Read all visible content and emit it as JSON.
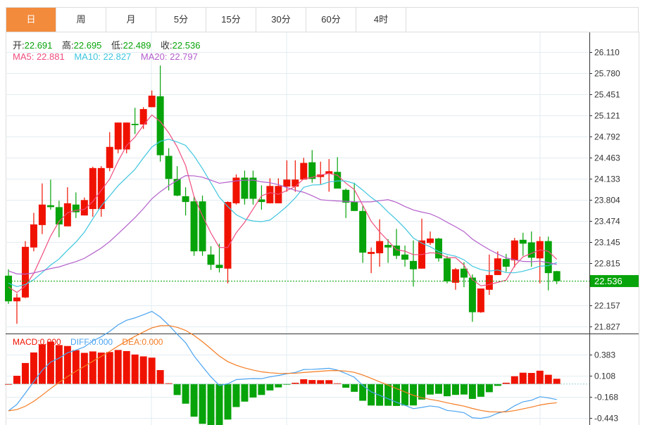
{
  "tabs": [
    "日",
    "周",
    "月",
    "5分",
    "15分",
    "30分",
    "60分",
    "4时"
  ],
  "active_tab": 0,
  "ohlc_info": {
    "open_label": "开:",
    "open": "22.691",
    "high_label": "高:",
    "high": "22.695",
    "low_label": "低:",
    "low": "22.489",
    "close_label": "收:",
    "close": "22.536"
  },
  "ma_info": {
    "ma5": "MA5: 22.881",
    "ma10": "MA10: 22.827",
    "ma20": "MA20: 22.797"
  },
  "macd_info": {
    "macd": "MACD:0.000",
    "diff": "DIFF:0.000",
    "dea": "DEA:0.000"
  },
  "colors": {
    "up": "#f01200",
    "down": "#07a30a",
    "ma5": "#ef4d7e",
    "ma10": "#3ec6df",
    "ma20": "#b45fcb",
    "diff": "#4aa3f0",
    "dea": "#f57c23",
    "accent": "#f38b3c"
  },
  "chart_data": {
    "type": "candlestick",
    "price_axis_ticks": [
      "26.110",
      "25.780",
      "25.451",
      "25.121",
      "24.792",
      "24.463",
      "24.133",
      "23.804",
      "23.474",
      "23.145",
      "22.815",
      "22.157",
      "21.827"
    ],
    "price_range": [
      21.827,
      26.11
    ],
    "last_price_label": "22.536",
    "macd_axis_ticks": [
      "0.383",
      "0.108",
      "-0.168",
      "-0.443"
    ],
    "macd_range": [
      -0.443,
      0.383
    ],
    "candles": [
      [
        22.62,
        22.72,
        22.18,
        22.22
      ],
      [
        22.22,
        22.34,
        21.87,
        22.28
      ],
      [
        22.28,
        23.16,
        22.27,
        23.07
      ],
      [
        23.06,
        23.6,
        23.0,
        23.42
      ],
      [
        23.41,
        24.06,
        23.27,
        23.73
      ],
      [
        23.72,
        24.12,
        23.65,
        23.69
      ],
      [
        23.69,
        23.79,
        23.22,
        23.42
      ],
      [
        23.39,
        24.0,
        23.39,
        23.75
      ],
      [
        23.73,
        23.92,
        23.52,
        23.61
      ],
      [
        23.56,
        23.84,
        23.56,
        23.8
      ],
      [
        23.66,
        24.32,
        23.54,
        24.3
      ],
      [
        23.66,
        24.33,
        23.54,
        24.3
      ],
      [
        24.3,
        24.86,
        24.25,
        24.63
      ],
      [
        24.59,
        25.01,
        24.53,
        25.01
      ],
      [
        24.59,
        25.01,
        24.53,
        25.01
      ],
      [
        24.99,
        25.24,
        24.83,
        24.97
      ],
      [
        24.98,
        25.25,
        24.91,
        25.22
      ],
      [
        25.25,
        25.51,
        25.25,
        25.43
      ],
      [
        25.42,
        25.9,
        24.4,
        24.5
      ],
      [
        24.49,
        24.61,
        23.95,
        24.13
      ],
      [
        24.13,
        24.33,
        23.86,
        23.87
      ],
      [
        23.86,
        24.0,
        23.56,
        23.77
      ],
      [
        23.78,
        23.86,
        22.93,
        23.0
      ],
      [
        23.78,
        23.87,
        22.93,
        23.0
      ],
      [
        22.95,
        23.08,
        22.71,
        22.79
      ],
      [
        22.79,
        23.12,
        22.67,
        22.74
      ],
      [
        22.73,
        23.78,
        22.5,
        23.77
      ],
      [
        23.75,
        24.2,
        23.73,
        24.15
      ],
      [
        24.15,
        24.26,
        23.73,
        23.82
      ],
      [
        24.15,
        24.26,
        23.73,
        23.82
      ],
      [
        23.81,
        24.03,
        23.65,
        23.77
      ],
      [
        23.75,
        24.14,
        23.75,
        24.02
      ],
      [
        23.75,
        24.14,
        23.75,
        24.02
      ],
      [
        24.01,
        24.42,
        23.93,
        24.12
      ],
      [
        24.01,
        24.42,
        23.93,
        24.12
      ],
      [
        24.12,
        24.46,
        24.12,
        24.38
      ],
      [
        24.39,
        24.58,
        24.07,
        24.13
      ],
      [
        24.16,
        24.4,
        24.05,
        24.2
      ],
      [
        24.21,
        24.44,
        23.93,
        24.25
      ],
      [
        24.24,
        24.47,
        23.98,
        23.98
      ],
      [
        23.96,
        23.98,
        23.52,
        23.76
      ],
      [
        23.77,
        24.07,
        23.63,
        23.63
      ],
      [
        23.63,
        23.71,
        22.82,
        22.98
      ],
      [
        22.96,
        23.06,
        22.66,
        22.99
      ],
      [
        22.97,
        23.5,
        22.76,
        23.16
      ],
      [
        23.1,
        23.19,
        22.82,
        23.06
      ],
      [
        23.09,
        23.35,
        22.88,
        22.93
      ],
      [
        22.95,
        23.09,
        22.76,
        22.87
      ],
      [
        22.85,
        23.17,
        22.45,
        22.72
      ],
      [
        22.73,
        23.51,
        22.73,
        23.17
      ],
      [
        23.13,
        23.31,
        23.1,
        23.2
      ],
      [
        23.2,
        23.21,
        22.84,
        22.89
      ],
      [
        22.89,
        22.93,
        22.5,
        22.53
      ],
      [
        22.51,
        22.74,
        22.4,
        22.72
      ],
      [
        22.73,
        22.83,
        22.44,
        22.59
      ],
      [
        22.59,
        22.64,
        21.9,
        22.05
      ],
      [
        22.05,
        22.42,
        22.04,
        22.42
      ],
      [
        22.4,
        22.95,
        22.32,
        22.63
      ],
      [
        22.63,
        23.0,
        22.63,
        22.89
      ],
      [
        22.88,
        22.96,
        22.68,
        22.76
      ],
      [
        22.86,
        23.21,
        22.75,
        23.17
      ],
      [
        23.18,
        23.29,
        22.93,
        23.12
      ],
      [
        23.14,
        23.31,
        22.76,
        22.9
      ],
      [
        22.89,
        23.23,
        22.5,
        23.16
      ],
      [
        23.16,
        23.23,
        22.39,
        22.66
      ],
      [
        22.691,
        22.695,
        22.489,
        22.536
      ]
    ],
    "candle_format": [
      "open",
      "high",
      "low",
      "close"
    ],
    "indicators": [
      "MA5",
      "MA10",
      "MA20",
      "MACD(12,26,9)"
    ]
  }
}
